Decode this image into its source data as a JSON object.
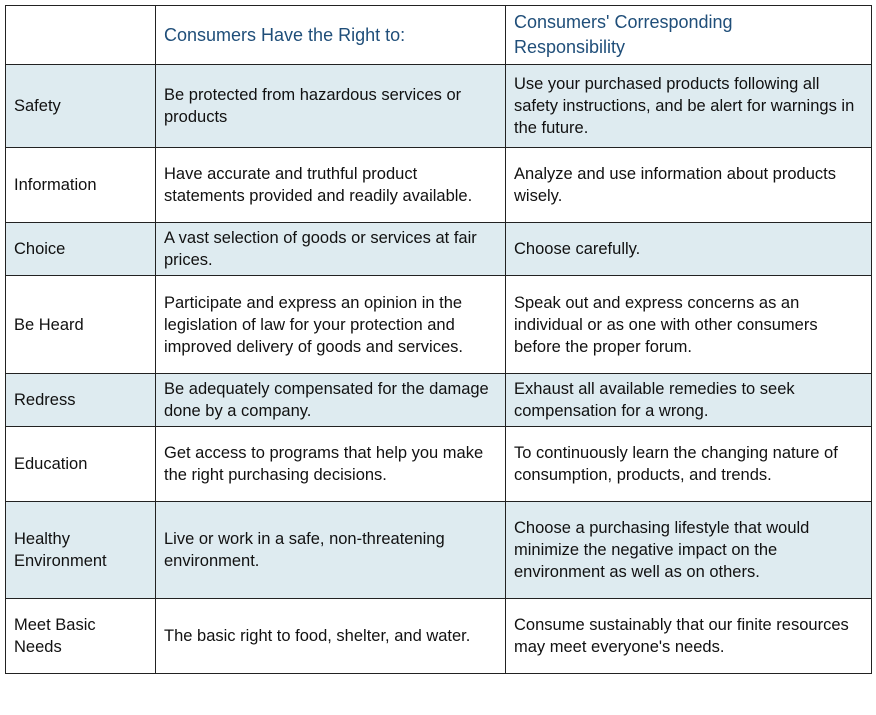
{
  "header": {
    "col1": "",
    "col2": "Consumers Have the Right to:",
    "col3_line1": "Consumers' Corresponding",
    "col3_line2": "Responsibility"
  },
  "rows": [
    {
      "right": "Safety",
      "description": "Be protected from hazardous services or products",
      "responsibility": "Use your purchased products following all safety instructions, and be alert for warnings in the future."
    },
    {
      "right": "Information",
      "description": "Have accurate and truthful product statements provided and readily available.",
      "responsibility": "Analyze and use information about products wisely."
    },
    {
      "right": "Choice",
      "description": "A vast selection of goods or services at fair prices.",
      "responsibility": "Choose carefully."
    },
    {
      "right": "Be Heard",
      "description": "Participate and express an opinion in the legislation of law for your protection and improved delivery of goods and services.",
      "responsibility": "Speak out and express concerns as an individual or as one with other consumers before the proper forum."
    },
    {
      "right": "Redress",
      "description": "Be adequately compensated for the damage done by a company.",
      "responsibility": "Exhaust all available remedies to seek compensation for a wrong."
    },
    {
      "right": "Education",
      "description": "Get access to programs that help you make the right purchasing decisions.",
      "responsibility": "To continuously learn the changing nature of consumption, products, and trends."
    },
    {
      "right_line1": "Healthy",
      "right_line2": "Environment",
      "description": "Live or work in a safe, non-threatening environment.",
      "responsibility": "Choose a purchasing lifestyle that would minimize the negative impact on the environment as well as on others."
    },
    {
      "right_line1": "Meet Basic",
      "right_line2": "Needs",
      "description": "The basic right to food, shelter, and water.",
      "responsibility": "Consume sustainably that our finite resources may meet everyone's needs."
    }
  ],
  "colors": {
    "header_text": "#1f4e79",
    "row_shade": "#deebf0",
    "border": "#222222"
  }
}
